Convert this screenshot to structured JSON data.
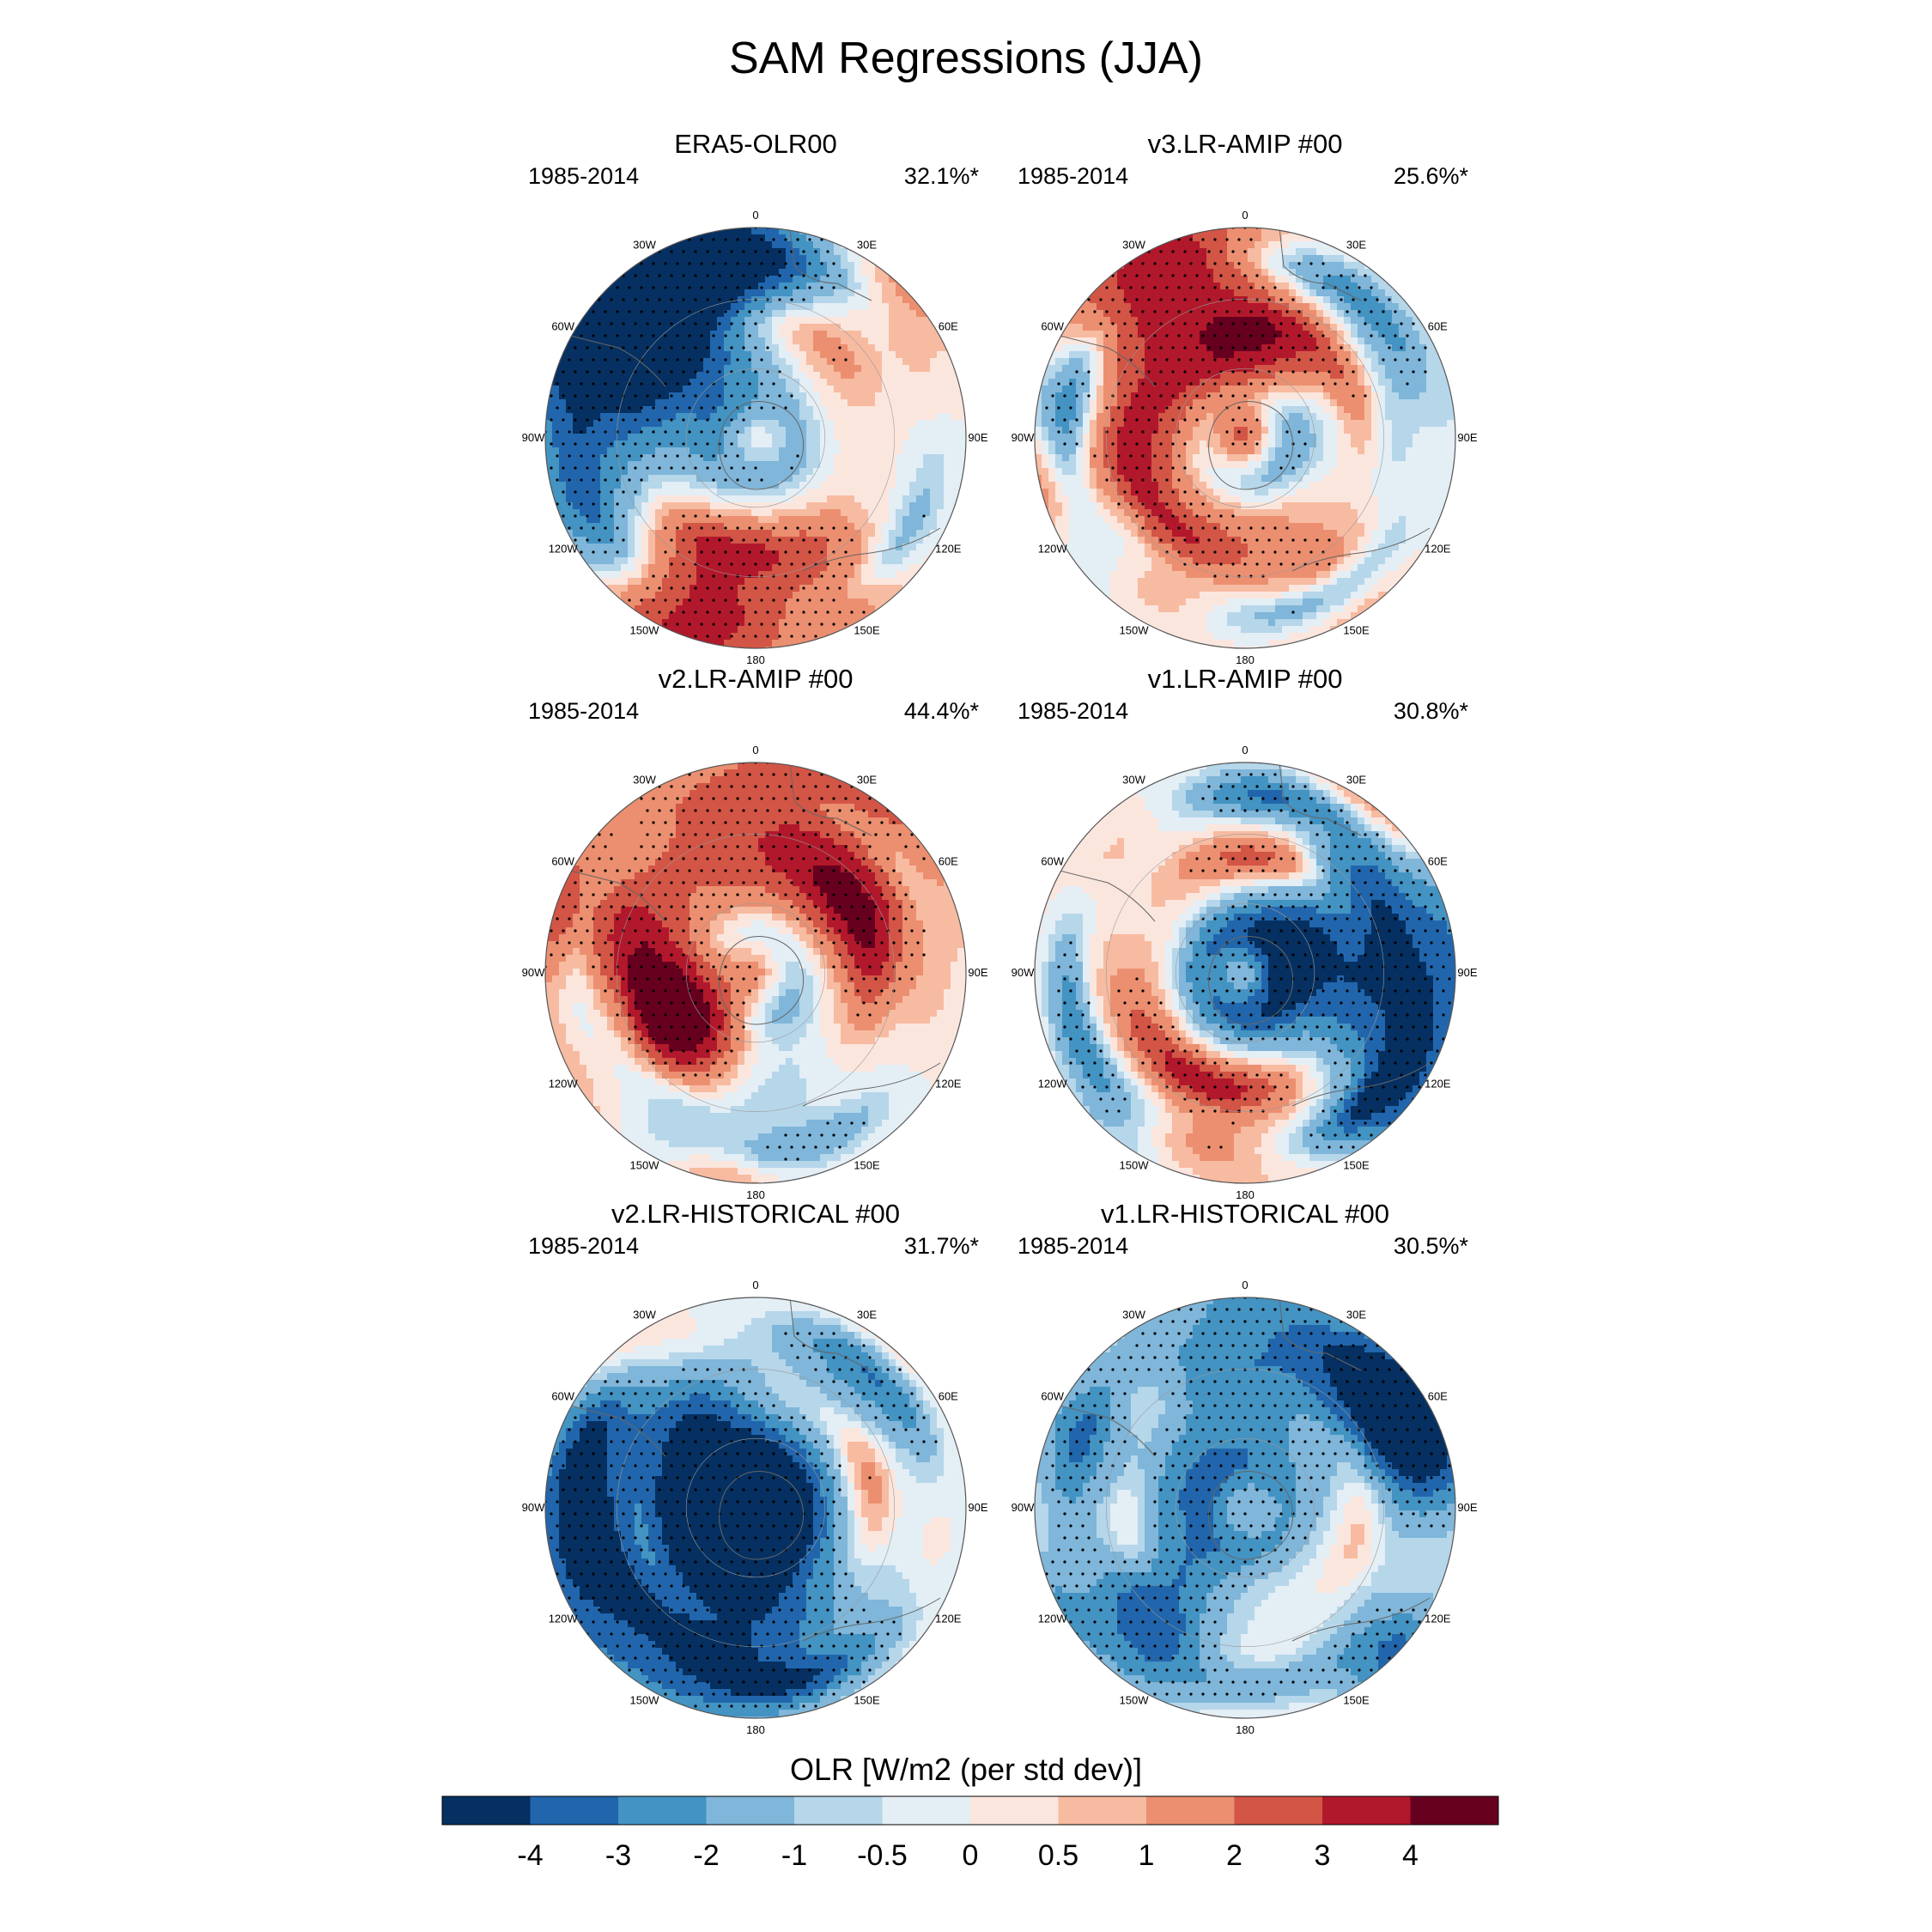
{
  "title": "SAM Regressions (JJA)",
  "panels": [
    {
      "title": "ERA5-OLR00",
      "period": "1985-2014",
      "variance": "32.1%*",
      "seed": 11
    },
    {
      "title": "v3.LR-AMIP  #00",
      "period": "1985-2014",
      "variance": "25.6%*",
      "seed": 23
    },
    {
      "title": "v2.LR-AMIP  #00",
      "period": "1985-2014",
      "variance": "44.4%*",
      "seed": 37
    },
    {
      "title": "v1.LR-AMIP  #00",
      "period": "1985-2014",
      "variance": "30.8%*",
      "seed": 41
    },
    {
      "title": "v2.LR-HISTORICAL  #00",
      "period": "1985-2014",
      "variance": "31.7%*",
      "seed": 53
    },
    {
      "title": "v1.LR-HISTORICAL  #00",
      "period": "1985-2014",
      "variance": "30.5%*",
      "seed": 67
    }
  ],
  "longitude_labels": [
    "0",
    "30E",
    "60E",
    "90E",
    "120E",
    "150E",
    "180",
    "150W",
    "120W",
    "90W",
    "60W",
    "30W"
  ],
  "colorbar": {
    "title": "OLR [W/m2 (per std dev)]",
    "ticks": [
      "-4",
      "-3",
      "-2",
      "-1",
      "-0.5",
      "0",
      "0.5",
      "1",
      "2",
      "3",
      "4"
    ],
    "colors": [
      "#053061",
      "#2166ac",
      "#4393c3",
      "#7fb6d9",
      "#b6d6ea",
      "#e4eef5",
      "#fbe6de",
      "#f7bba1",
      "#eb8f70",
      "#d25546",
      "#b2182b",
      "#67001f"
    ]
  }
}
